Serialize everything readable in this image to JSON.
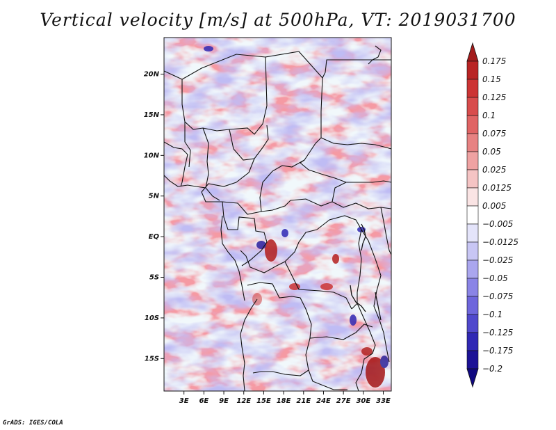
{
  "title": "Vertical velocity [m/s] at 500hPa, VT: 2019031700",
  "footer": "GrADS: IGES/COLA",
  "map": {
    "lat_labels": [
      "20N",
      "15N",
      "10N",
      "5N",
      "EQ",
      "5S",
      "10S",
      "15S"
    ],
    "lat_values": [
      20,
      15,
      10,
      5,
      0,
      -5,
      -10,
      -15
    ],
    "lon_labels": [
      "3E",
      "6E",
      "9E",
      "12E",
      "15E",
      "18E",
      "21E",
      "24E",
      "27E",
      "30E",
      "33E"
    ],
    "lon_values": [
      3,
      6,
      9,
      12,
      15,
      18,
      21,
      24,
      27,
      30,
      33
    ],
    "lat_range": [
      -19,
      24.5
    ],
    "lon_range": [
      0,
      34.2
    ]
  },
  "colorbar": {
    "labels": [
      "0.175",
      "0.15",
      "0.125",
      "0.1",
      "0.075",
      "0.05",
      "0.025",
      "0.0125",
      "0.005",
      "−0.005",
      "−0.0125",
      "−0.025",
      "−0.05",
      "−0.075",
      "−0.1",
      "−0.125",
      "−0.175",
      "−0.2"
    ],
    "colors": [
      "#a31b1b",
      "#b92424",
      "#cc3434",
      "#d84c4c",
      "#e06464",
      "#e78282",
      "#efa2a2",
      "#f5c4c4",
      "#fae4e4",
      "#ffffff",
      "#e4e4fa",
      "#c8c6f4",
      "#aaa6ee",
      "#8a84e6",
      "#6e66dc",
      "#5048cc",
      "#3028b4",
      "#1c1296",
      "#100880"
    ]
  }
}
